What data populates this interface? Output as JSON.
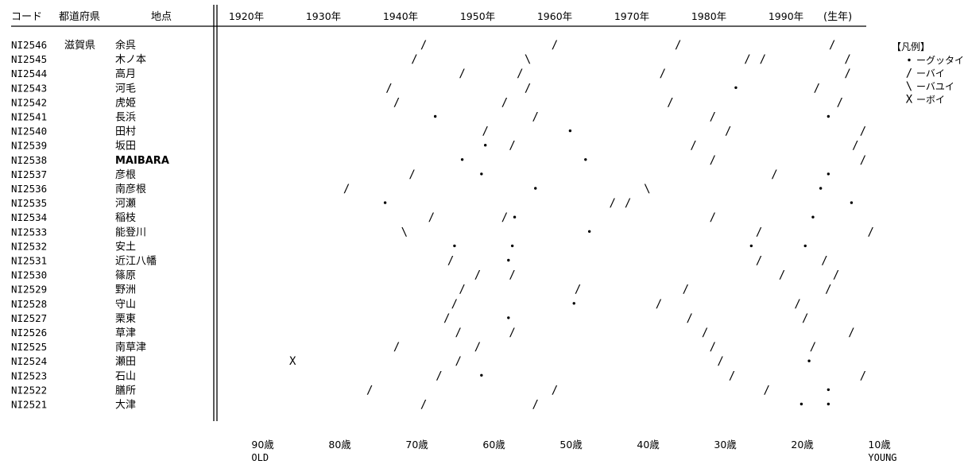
{
  "header": {
    "code": "コード",
    "prefecture": "都道府県",
    "place": "地点",
    "x_suffix": "(生年)"
  },
  "colors": {
    "ink": "#000000",
    "background": "#ffffff"
  },
  "chart_data": {
    "type": "scatter",
    "x_unit": "birth year",
    "xlim": [
      1914,
      2003
    ],
    "grid": false,
    "legend_position": "right",
    "x_ticks": [
      {
        "year": 1920,
        "label": "1920年"
      },
      {
        "year": 1930,
        "label": "1930年"
      },
      {
        "year": 1940,
        "label": "1940年"
      },
      {
        "year": 1950,
        "label": "1950年"
      },
      {
        "year": 1960,
        "label": "1960年"
      },
      {
        "year": 1970,
        "label": "1970年"
      },
      {
        "year": 1980,
        "label": "1980年"
      },
      {
        "year": 1990,
        "label": "1990年"
      }
    ],
    "age_ticks": [
      {
        "year": 1922,
        "age": "90歳",
        "sub": "OLD"
      },
      {
        "year": 1932,
        "age": "80歳",
        "sub": ""
      },
      {
        "year": 1942,
        "age": "70歳",
        "sub": ""
      },
      {
        "year": 1952,
        "age": "60歳",
        "sub": ""
      },
      {
        "year": 1962,
        "age": "50歳",
        "sub": ""
      },
      {
        "year": 1972,
        "age": "40歳",
        "sub": ""
      },
      {
        "year": 1982,
        "age": "30歳",
        "sub": ""
      },
      {
        "year": 1992,
        "age": "20歳",
        "sub": ""
      },
      {
        "year": 2002,
        "age": "10歳",
        "sub": "YOUNG"
      }
    ],
    "legend": {
      "title": "【凡例】",
      "items": [
        {
          "symbol": "•",
          "label": "ーグッタイ"
        },
        {
          "symbol": "/",
          "label": "ーバイ"
        },
        {
          "symbol": "\\",
          "label": "ーバユイ"
        },
        {
          "symbol": "X",
          "label": "ーボイ"
        }
      ]
    },
    "rows": [
      {
        "code": "NI2546",
        "pref": "滋賀県",
        "place": "余呉",
        "marks": [
          {
            "year": 1943.0,
            "s": "/"
          },
          {
            "year": 1960.0,
            "s": "/"
          },
          {
            "year": 1976.0,
            "s": "/"
          },
          {
            "year": 1996.0,
            "s": "/"
          }
        ]
      },
      {
        "code": "NI2545",
        "pref": "",
        "place": "木ノ本",
        "marks": [
          {
            "year": 1941.8,
            "s": "/"
          },
          {
            "year": 1956.5,
            "s": "\\"
          },
          {
            "year": 1985.0,
            "s": "/"
          },
          {
            "year": 1987.0,
            "s": "/"
          },
          {
            "year": 1998.0,
            "s": "/"
          }
        ]
      },
      {
        "code": "NI2544",
        "pref": "",
        "place": "高月",
        "marks": [
          {
            "year": 1948.0,
            "s": "/"
          },
          {
            "year": 1955.5,
            "s": "/"
          },
          {
            "year": 1974.0,
            "s": "/"
          },
          {
            "year": 1998.0,
            "s": "/"
          }
        ]
      },
      {
        "code": "NI2543",
        "pref": "",
        "place": "河毛",
        "marks": [
          {
            "year": 1938.5,
            "s": "/"
          },
          {
            "year": 1956.5,
            "s": "/"
          },
          {
            "year": 1983.5,
            "s": "•"
          },
          {
            "year": 1994.0,
            "s": "/"
          }
        ]
      },
      {
        "code": "NI2542",
        "pref": "",
        "place": "虎姫",
        "marks": [
          {
            "year": 1939.5,
            "s": "/"
          },
          {
            "year": 1953.5,
            "s": "/"
          },
          {
            "year": 1975.0,
            "s": "/"
          },
          {
            "year": 1997.0,
            "s": "/"
          }
        ]
      },
      {
        "code": "NI2541",
        "pref": "",
        "place": "長浜",
        "marks": [
          {
            "year": 1944.5,
            "s": "•"
          },
          {
            "year": 1957.5,
            "s": "/"
          },
          {
            "year": 1980.5,
            "s": "/"
          },
          {
            "year": 1995.5,
            "s": "•"
          }
        ]
      },
      {
        "code": "NI2540",
        "pref": "",
        "place": "田村",
        "marks": [
          {
            "year": 1951.0,
            "s": "/"
          },
          {
            "year": 1962.0,
            "s": "•"
          },
          {
            "year": 1982.5,
            "s": "/"
          },
          {
            "year": 2000.0,
            "s": "/"
          }
        ]
      },
      {
        "code": "NI2539",
        "pref": "",
        "place": "坂田",
        "marks": [
          {
            "year": 1951.0,
            "s": "•"
          },
          {
            "year": 1954.5,
            "s": "/"
          },
          {
            "year": 1978.0,
            "s": "/"
          },
          {
            "year": 1999.0,
            "s": "/"
          }
        ]
      },
      {
        "code": "NI2538",
        "pref": "",
        "place": "MAIBARA",
        "marks": [
          {
            "year": 1948.0,
            "s": "•"
          },
          {
            "year": 1964.0,
            "s": "•"
          },
          {
            "year": 1980.5,
            "s": "/"
          },
          {
            "year": 2000.0,
            "s": "/"
          }
        ]
      },
      {
        "code": "NI2537",
        "pref": "",
        "place": "彦根",
        "marks": [
          {
            "year": 1941.5,
            "s": "/"
          },
          {
            "year": 1950.5,
            "s": "•"
          },
          {
            "year": 1988.5,
            "s": "/"
          },
          {
            "year": 1995.5,
            "s": "•"
          }
        ]
      },
      {
        "code": "NI2536",
        "pref": "",
        "place": "南彦根",
        "marks": [
          {
            "year": 1933.0,
            "s": "/"
          },
          {
            "year": 1957.5,
            "s": "•"
          },
          {
            "year": 1972.0,
            "s": "\\"
          },
          {
            "year": 1994.5,
            "s": "•"
          }
        ]
      },
      {
        "code": "NI2535",
        "pref": "",
        "place": "河瀬",
        "marks": [
          {
            "year": 1938.0,
            "s": "•"
          },
          {
            "year": 1967.5,
            "s": "/"
          },
          {
            "year": 1969.5,
            "s": "/"
          },
          {
            "year": 1998.5,
            "s": "•"
          }
        ]
      },
      {
        "code": "NI2534",
        "pref": "",
        "place": "稲枝",
        "marks": [
          {
            "year": 1944.0,
            "s": "/"
          },
          {
            "year": 1953.5,
            "s": "/"
          },
          {
            "year": 1954.8,
            "s": "•"
          },
          {
            "year": 1980.5,
            "s": "/"
          },
          {
            "year": 1993.5,
            "s": "•"
          }
        ]
      },
      {
        "code": "NI2533",
        "pref": "",
        "place": "能登川",
        "marks": [
          {
            "year": 1940.5,
            "s": "\\"
          },
          {
            "year": 1964.5,
            "s": "•"
          },
          {
            "year": 1986.5,
            "s": "/"
          },
          {
            "year": 2001.0,
            "s": "/"
          }
        ]
      },
      {
        "code": "NI2532",
        "pref": "",
        "place": "安土",
        "marks": [
          {
            "year": 1947.0,
            "s": "•"
          },
          {
            "year": 1954.5,
            "s": "•"
          },
          {
            "year": 1985.5,
            "s": "•"
          },
          {
            "year": 1992.5,
            "s": "•"
          }
        ]
      },
      {
        "code": "NI2531",
        "pref": "",
        "place": "近江八幡",
        "marks": [
          {
            "year": 1946.5,
            "s": "/"
          },
          {
            "year": 1954.0,
            "s": "•"
          },
          {
            "year": 1986.5,
            "s": "/"
          },
          {
            "year": 1995.0,
            "s": "/"
          }
        ]
      },
      {
        "code": "NI2530",
        "pref": "",
        "place": "篠原",
        "marks": [
          {
            "year": 1950.0,
            "s": "/"
          },
          {
            "year": 1954.5,
            "s": "/"
          },
          {
            "year": 1989.5,
            "s": "/"
          },
          {
            "year": 1996.5,
            "s": "/"
          }
        ]
      },
      {
        "code": "NI2529",
        "pref": "",
        "place": "野洲",
        "marks": [
          {
            "year": 1948.0,
            "s": "/"
          },
          {
            "year": 1963.0,
            "s": "/"
          },
          {
            "year": 1977.0,
            "s": "/"
          },
          {
            "year": 1995.5,
            "s": "/"
          }
        ]
      },
      {
        "code": "NI2528",
        "pref": "",
        "place": "守山",
        "marks": [
          {
            "year": 1947.0,
            "s": "/"
          },
          {
            "year": 1962.5,
            "s": "•"
          },
          {
            "year": 1973.5,
            "s": "/"
          },
          {
            "year": 1991.5,
            "s": "/"
          }
        ]
      },
      {
        "code": "NI2527",
        "pref": "",
        "place": "栗東",
        "marks": [
          {
            "year": 1946.0,
            "s": "/"
          },
          {
            "year": 1954.0,
            "s": "•"
          },
          {
            "year": 1977.5,
            "s": "/"
          },
          {
            "year": 1992.5,
            "s": "/"
          }
        ]
      },
      {
        "code": "NI2526",
        "pref": "",
        "place": "草津",
        "marks": [
          {
            "year": 1947.5,
            "s": "/"
          },
          {
            "year": 1954.5,
            "s": "/"
          },
          {
            "year": 1979.5,
            "s": "/"
          },
          {
            "year": 1998.5,
            "s": "/"
          }
        ]
      },
      {
        "code": "NI2525",
        "pref": "",
        "place": "南草津",
        "marks": [
          {
            "year": 1939.5,
            "s": "/"
          },
          {
            "year": 1950.0,
            "s": "/"
          },
          {
            "year": 1980.5,
            "s": "/"
          },
          {
            "year": 1993.5,
            "s": "/"
          }
        ]
      },
      {
        "code": "NI2524",
        "pref": "",
        "place": "瀬田",
        "marks": [
          {
            "year": 1926.0,
            "s": "X"
          },
          {
            "year": 1947.5,
            "s": "/"
          },
          {
            "year": 1981.5,
            "s": "/"
          },
          {
            "year": 1993.0,
            "s": "•"
          }
        ]
      },
      {
        "code": "NI2523",
        "pref": "",
        "place": "石山",
        "marks": [
          {
            "year": 1945.0,
            "s": "/"
          },
          {
            "year": 1950.5,
            "s": "•"
          },
          {
            "year": 1983.0,
            "s": "/"
          },
          {
            "year": 2000.0,
            "s": "/"
          }
        ]
      },
      {
        "code": "NI2522",
        "pref": "",
        "place": "膳所",
        "marks": [
          {
            "year": 1936.0,
            "s": "/"
          },
          {
            "year": 1960.0,
            "s": "/"
          },
          {
            "year": 1987.5,
            "s": "/"
          },
          {
            "year": 1995.5,
            "s": "•"
          }
        ]
      },
      {
        "code": "NI2521",
        "pref": "",
        "place": "大津",
        "marks": [
          {
            "year": 1943.0,
            "s": "/"
          },
          {
            "year": 1957.5,
            "s": "/"
          },
          {
            "year": 1992.0,
            "s": "•"
          },
          {
            "year": 1995.5,
            "s": "•"
          }
        ]
      }
    ]
  }
}
